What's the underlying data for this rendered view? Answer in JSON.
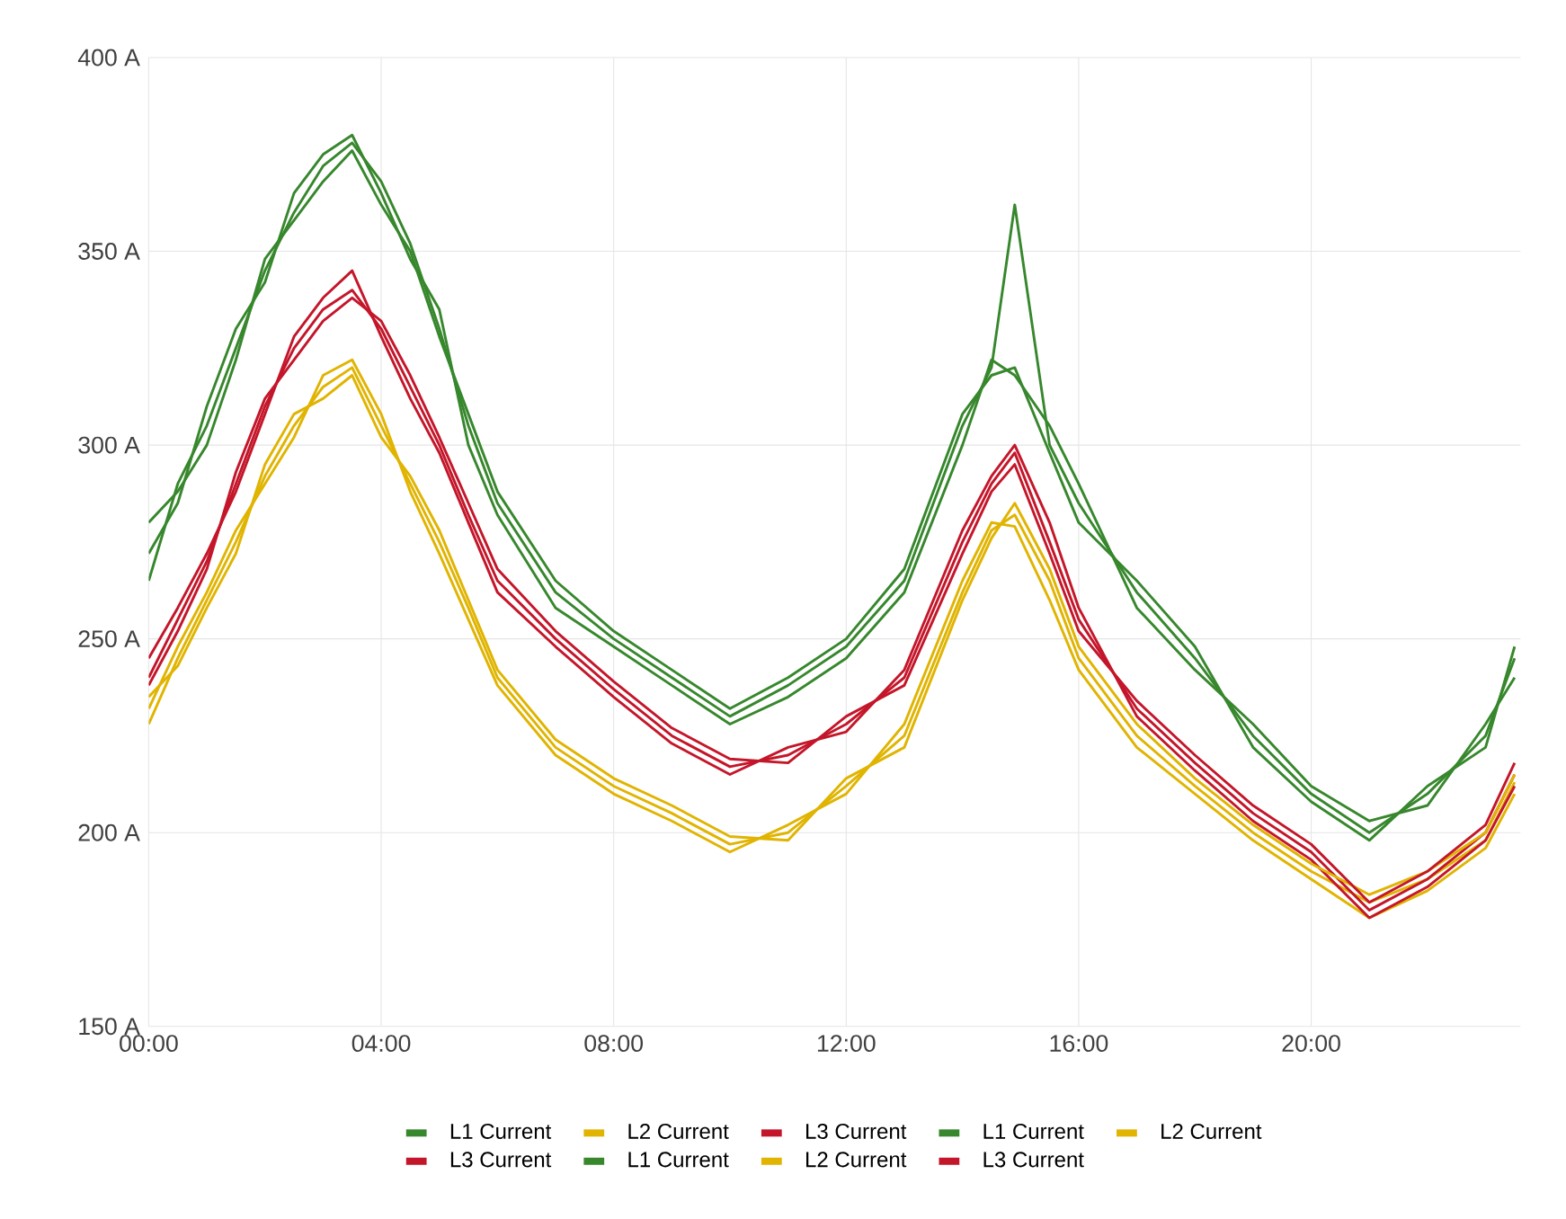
{
  "chart_data": {
    "type": "line",
    "x": [
      0,
      0.5,
      1,
      1.5,
      2,
      2.5,
      3,
      3.5,
      4,
      4.5,
      5,
      5.5,
      6,
      7,
      8,
      9,
      10,
      11,
      12,
      13,
      14,
      14.5,
      14.9,
      15.5,
      16,
      17,
      18,
      19,
      20,
      21,
      22,
      23,
      23.5
    ],
    "series": [
      {
        "name": "L1 Current",
        "color": "#37872d",
        "values": [
          265,
          290,
          305,
          325,
          345,
          360,
          372,
          378,
          368,
          352,
          330,
          305,
          285,
          262,
          250,
          240,
          230,
          238,
          248,
          265,
          305,
          320,
          362,
          300,
          285,
          262,
          245,
          225,
          210,
          200,
          210,
          225,
          245
        ]
      },
      {
        "name": "L2 Current",
        "color": "#e0b400",
        "values": [
          228,
          245,
          260,
          275,
          292,
          305,
          315,
          320,
          305,
          290,
          275,
          258,
          240,
          222,
          212,
          205,
          197,
          200,
          212,
          225,
          262,
          278,
          282,
          265,
          245,
          225,
          212,
          200,
          190,
          182,
          188,
          198,
          213
        ]
      },
      {
        "name": "L3 Current",
        "color": "#c4162a",
        "values": [
          240,
          255,
          270,
          290,
          310,
          325,
          335,
          340,
          330,
          315,
          300,
          282,
          265,
          250,
          237,
          225,
          217,
          220,
          228,
          240,
          275,
          290,
          298,
          275,
          255,
          232,
          218,
          205,
          195,
          180,
          188,
          200,
          215
        ]
      },
      {
        "name": "L1 Current",
        "color": "#37872d",
        "values": [
          272,
          285,
          310,
          330,
          342,
          365,
          375,
          380,
          365,
          348,
          335,
          300,
          282,
          258,
          248,
          238,
          228,
          235,
          245,
          262,
          300,
          322,
          318,
          305,
          290,
          258,
          242,
          228,
          212,
          203,
          207,
          228,
          240
        ]
      },
      {
        "name": "L2 Current",
        "color": "#e0b400",
        "values": [
          232,
          248,
          262,
          278,
          290,
          302,
          318,
          322,
          308,
          288,
          272,
          255,
          238,
          220,
          210,
          203,
          195,
          202,
          210,
          228,
          265,
          280,
          279,
          260,
          242,
          222,
          210,
          198,
          188,
          178,
          185,
          196,
          210
        ]
      },
      {
        "name": "L3 Current",
        "color": "#c4162a",
        "values": [
          245,
          258,
          272,
          288,
          308,
          328,
          338,
          345,
          328,
          312,
          298,
          280,
          262,
          248,
          235,
          223,
          215,
          222,
          226,
          242,
          278,
          292,
          300,
          280,
          258,
          230,
          216,
          203,
          193,
          178,
          186,
          198,
          212
        ]
      },
      {
        "name": "L1 Current",
        "color": "#37872d",
        "values": [
          280,
          288,
          300,
          322,
          348,
          358,
          368,
          376,
          362,
          350,
          328,
          308,
          288,
          265,
          252,
          242,
          232,
          240,
          250,
          268,
          308,
          318,
          320,
          298,
          280,
          265,
          248,
          222,
          208,
          198,
          212,
          222,
          248
        ]
      },
      {
        "name": "L2 Current",
        "color": "#e0b400",
        "values": [
          235,
          243,
          258,
          272,
          295,
          308,
          312,
          318,
          302,
          292,
          278,
          260,
          242,
          224,
          214,
          207,
          199,
          198,
          214,
          222,
          260,
          276,
          285,
          268,
          248,
          228,
          214,
          202,
          192,
          184,
          190,
          200,
          215
        ]
      },
      {
        "name": "L3 Current",
        "color": "#c4162a",
        "values": [
          238,
          252,
          268,
          293,
          312,
          322,
          332,
          338,
          332,
          318,
          302,
          285,
          268,
          252,
          239,
          227,
          219,
          218,
          230,
          238,
          272,
          288,
          295,
          272,
          252,
          234,
          220,
          207,
          197,
          182,
          190,
          202,
          218
        ]
      }
    ],
    "xlim": [
      0,
      23.6
    ],
    "ylim": [
      150,
      400
    ],
    "xticks": [
      {
        "value": 0,
        "label": "00:00"
      },
      {
        "value": 4,
        "label": "04:00"
      },
      {
        "value": 8,
        "label": "08:00"
      },
      {
        "value": 12,
        "label": "12:00"
      },
      {
        "value": 16,
        "label": "16:00"
      },
      {
        "value": 20,
        "label": "20:00"
      }
    ],
    "yticks": [
      {
        "value": 150,
        "label": "150 A"
      },
      {
        "value": 200,
        "label": "200 A"
      },
      {
        "value": 250,
        "label": "250 A"
      },
      {
        "value": 300,
        "label": "300 A"
      },
      {
        "value": 350,
        "label": "350 A"
      },
      {
        "value": 400,
        "label": "400 A"
      }
    ],
    "grid": true,
    "legend": "bottom",
    "marker": "none",
    "line_style": "solid"
  }
}
